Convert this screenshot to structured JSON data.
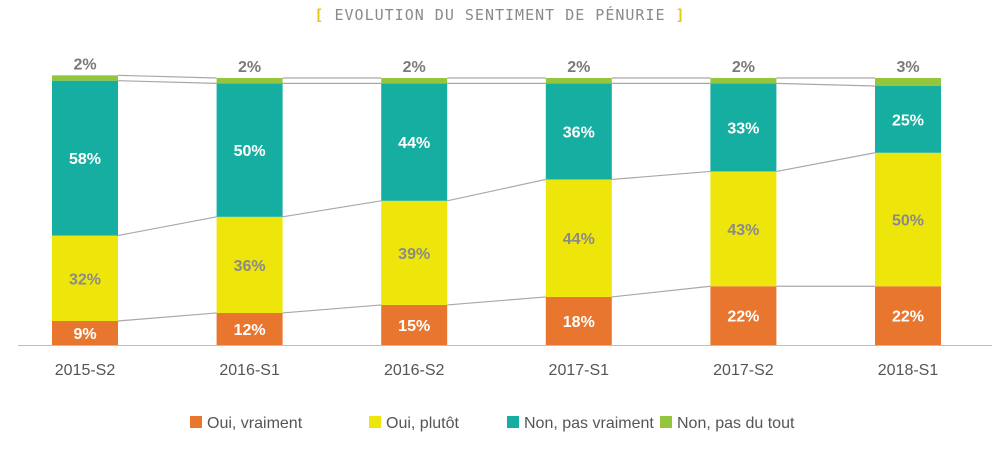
{
  "chart_data": {
    "type": "bar",
    "stacked": true,
    "title": "EVOLUTION DU SENTIMENT DE PÉNURIE",
    "categories": [
      "2015-S2",
      "2016-S1",
      "2016-S2",
      "2017-S1",
      "2017-S2",
      "2018-S1"
    ],
    "series": [
      {
        "name": "Oui, vraiment",
        "color": "#e8762f",
        "values": [
          9,
          12,
          15,
          18,
          22,
          22
        ]
      },
      {
        "name": "Oui, plutôt",
        "color": "#eee60a",
        "values": [
          32,
          36,
          39,
          44,
          43,
          50
        ]
      },
      {
        "name": "Non, pas vraiment",
        "color": "#16aea1",
        "values": [
          58,
          50,
          44,
          36,
          33,
          25
        ]
      },
      {
        "name": "Non, pas du tout",
        "color": "#93c63d",
        "values": [
          2,
          2,
          2,
          2,
          2,
          3
        ]
      }
    ],
    "value_suffix": "%",
    "legend_position": "bottom",
    "connector_lines": true,
    "grid": false
  }
}
